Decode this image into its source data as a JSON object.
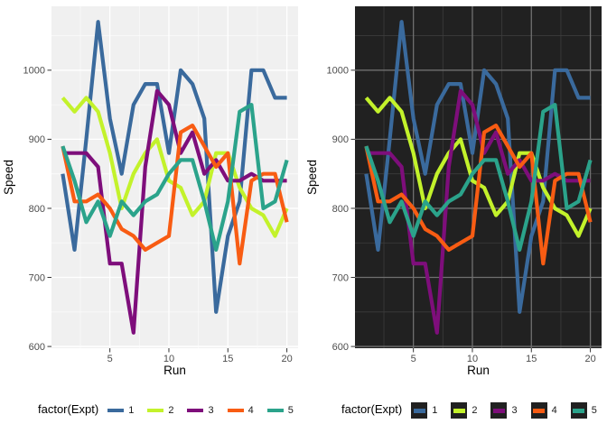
{
  "chart_data": {
    "type": "line",
    "title": "",
    "xlabel": "Run",
    "ylabel": "Speed",
    "legend_title": "factor(Expt)",
    "x": [
      1,
      2,
      3,
      4,
      5,
      6,
      7,
      8,
      9,
      10,
      11,
      12,
      13,
      14,
      15,
      16,
      17,
      18,
      19,
      20
    ],
    "series": [
      {
        "name": "1",
        "color": "#3A6A9D",
        "values": [
          850,
          740,
          900,
          1070,
          930,
          850,
          950,
          980,
          980,
          880,
          1000,
          980,
          930,
          650,
          760,
          810,
          1000,
          1000,
          960,
          960
        ]
      },
      {
        "name": "2",
        "color": "#C3F22B",
        "values": [
          960,
          940,
          960,
          940,
          880,
          800,
          850,
          880,
          900,
          840,
          830,
          790,
          810,
          880,
          880,
          830,
          800,
          790,
          760,
          800
        ]
      },
      {
        "name": "3",
        "color": "#7E0E7B",
        "values": [
          880,
          880,
          880,
          860,
          720,
          720,
          620,
          860,
          970,
          950,
          880,
          910,
          850,
          870,
          840,
          840,
          850,
          840,
          840,
          840
        ]
      },
      {
        "name": "4",
        "color": "#F85C13",
        "values": [
          890,
          810,
          810,
          820,
          800,
          770,
          760,
          740,
          750,
          760,
          910,
          920,
          890,
          860,
          880,
          720,
          840,
          850,
          850,
          780
        ]
      },
      {
        "name": "5",
        "color": "#2BA38B",
        "values": [
          890,
          840,
          780,
          810,
          760,
          810,
          790,
          810,
          820,
          850,
          870,
          870,
          810,
          740,
          810,
          940,
          950,
          800,
          810,
          870
        ]
      }
    ],
    "x_ticks": [
      5,
      10,
      15,
      20
    ],
    "y_ticks": [
      600,
      700,
      800,
      900,
      1000
    ],
    "xlim": [
      0.05,
      20.95
    ],
    "ylim": [
      597.5,
      1092.5
    ],
    "grid": true,
    "legend_position": "bottom",
    "panels": [
      {
        "id": "light",
        "panel_bg": "#F0F0F0",
        "grid_major": "#FFFFFF",
        "grid_minor": "#FAFAFA",
        "axis_text_color": "#4D4D4D",
        "axis_title_color": "#000000",
        "tick_mark_color": "#333333",
        "legend_key_bg": "none"
      },
      {
        "id": "dark",
        "panel_bg": "#212121",
        "grid_major": "#707070",
        "grid_minor": "#3C3C3C",
        "axis_text_color": "#4D4D4D",
        "axis_title_color": "#000000",
        "tick_mark_color": "#333333",
        "legend_key_bg": "#212121"
      }
    ]
  }
}
